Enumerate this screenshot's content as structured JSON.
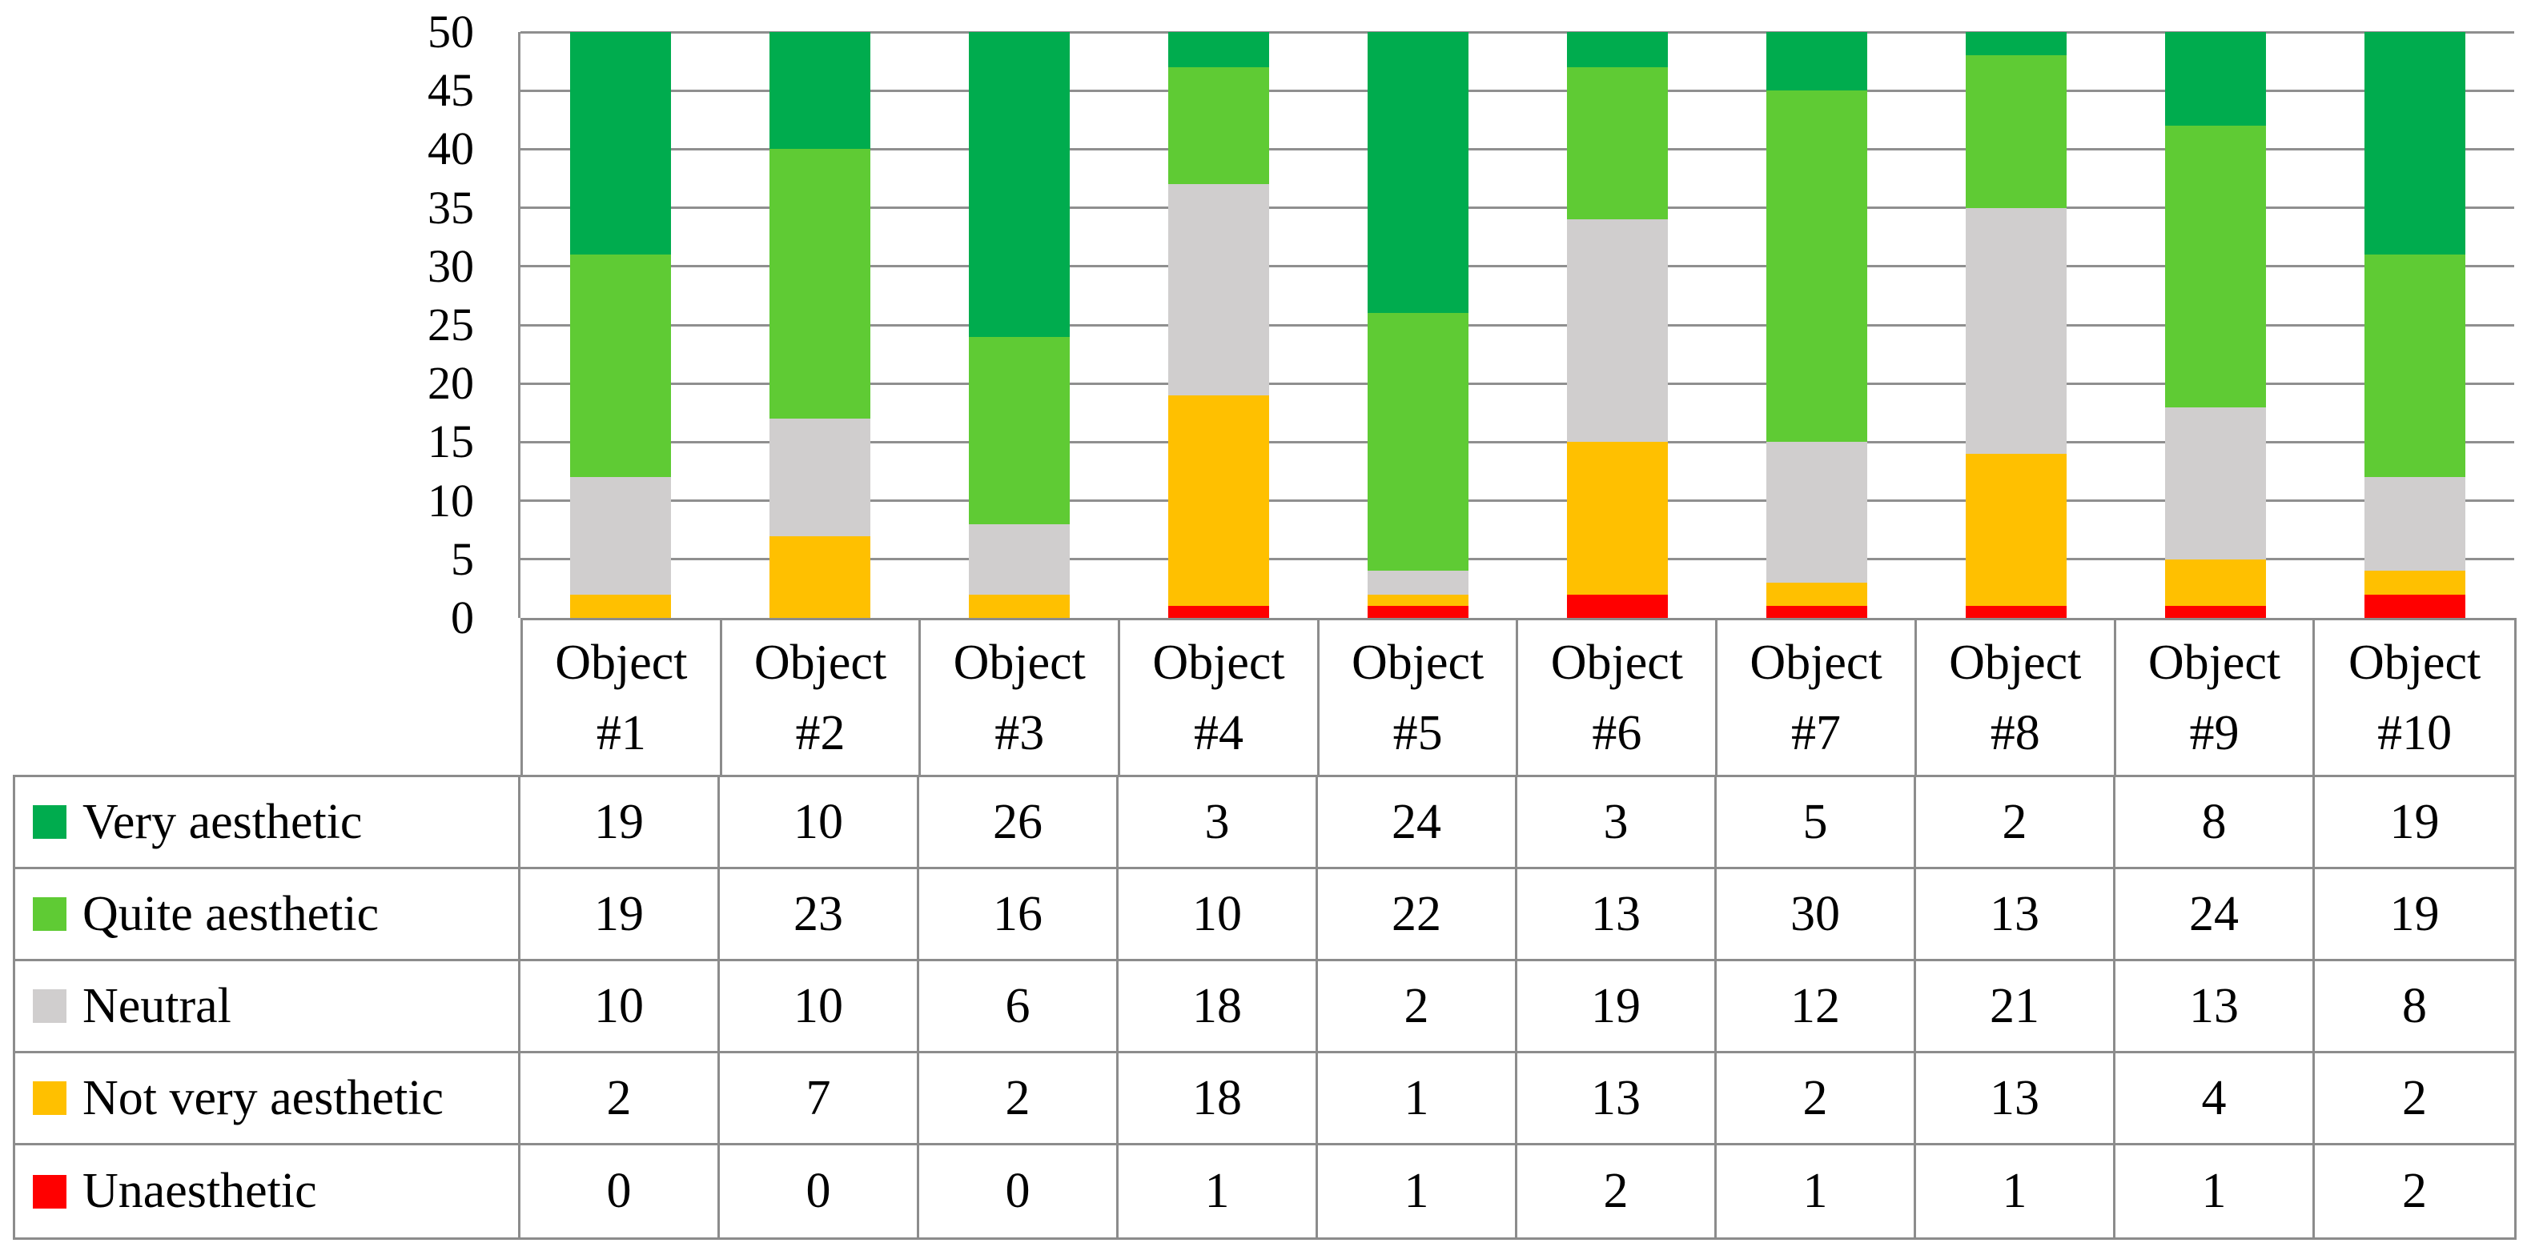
{
  "chart_data": {
    "type": "bar",
    "stacked": true,
    "title": "",
    "xlabel": "",
    "ylabel": "",
    "categories": [
      "Object #1",
      "Object #2",
      "Object #3",
      "Object #4",
      "Object #5",
      "Object #6",
      "Object #7",
      "Object #8",
      "Object #9",
      "Object #10"
    ],
    "series": [
      {
        "name": "Very aesthetic",
        "color": "#00AC4E",
        "values": [
          19,
          10,
          26,
          3,
          24,
          3,
          5,
          2,
          8,
          19
        ]
      },
      {
        "name": "Quite aesthetic",
        "color": "#5FCB34",
        "values": [
          19,
          23,
          16,
          10,
          22,
          13,
          30,
          13,
          24,
          19
        ]
      },
      {
        "name": "Neutral",
        "color": "#D0CECE",
        "values": [
          10,
          10,
          6,
          18,
          2,
          19,
          12,
          21,
          13,
          8
        ]
      },
      {
        "name": "Not very aesthetic",
        "color": "#FFC000",
        "values": [
          2,
          7,
          2,
          18,
          1,
          13,
          2,
          13,
          4,
          2
        ]
      },
      {
        "name": "Unaesthetic",
        "color": "#FF0000",
        "values": [
          0,
          0,
          0,
          1,
          1,
          2,
          1,
          1,
          1,
          2
        ]
      }
    ],
    "series_listed_top_to_bottom_of_stack": true,
    "ylim": [
      0,
      50
    ],
    "yticks": [
      0,
      5,
      10,
      15,
      20,
      25,
      30,
      35,
      40,
      45,
      50
    ],
    "ytick_labels": [
      "0",
      "5",
      "10",
      "15",
      "20",
      "25",
      "30",
      "35",
      "40",
      "45",
      "50"
    ],
    "grid": "horizontal",
    "legend_position": "table-rows-left",
    "bar_total_per_category": 50
  }
}
